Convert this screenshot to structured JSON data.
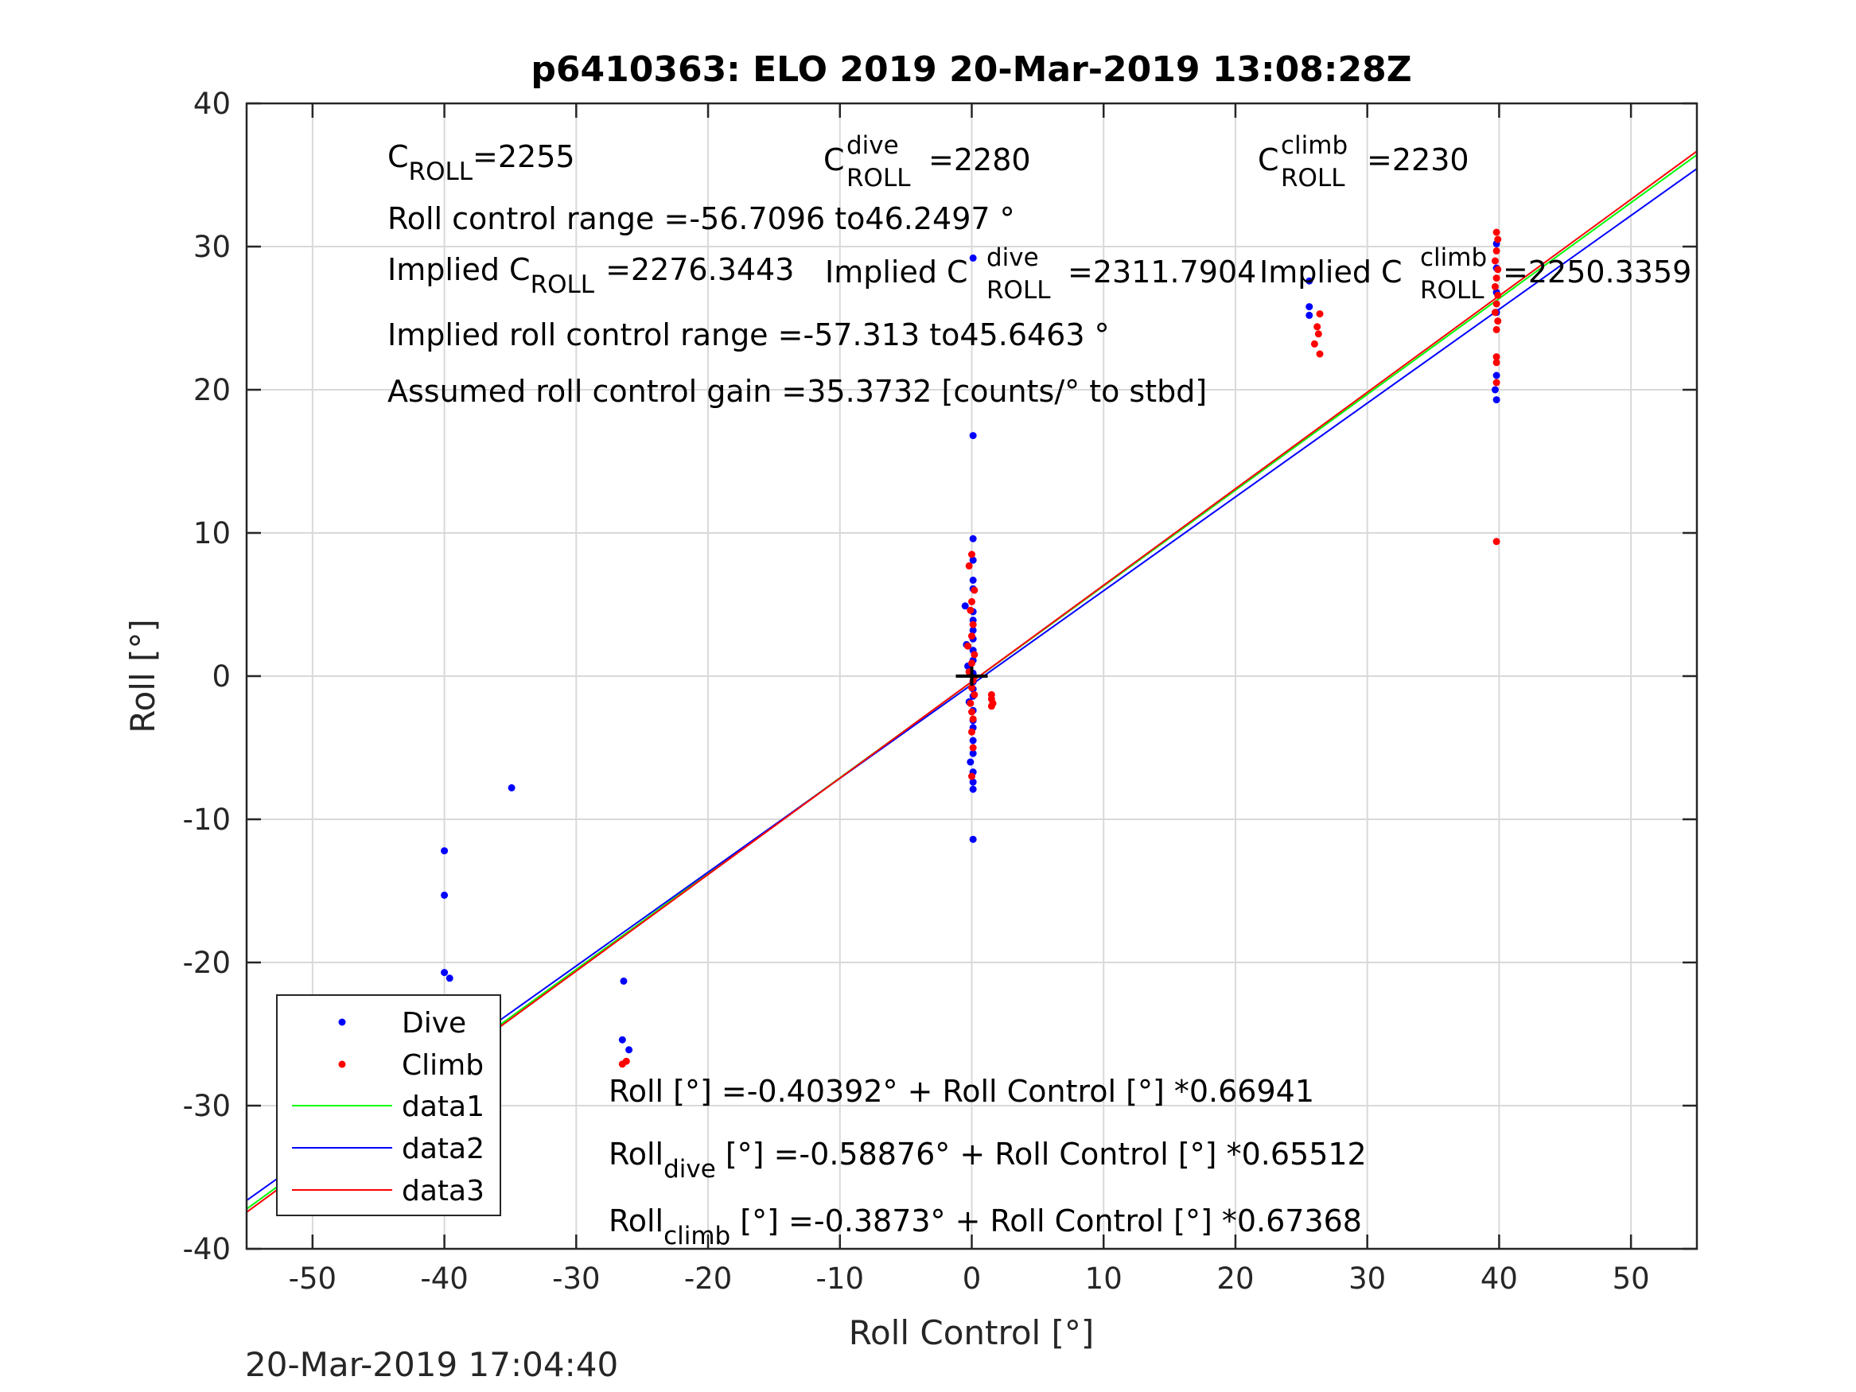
{
  "chart_data": {
    "type": "scatter",
    "title": "p6410363: ELO 2019 20-Mar-2019 13:08:28Z",
    "xlabel": "Roll Control [°]",
    "ylabel": "Roll [°]",
    "xlim": [
      -55,
      55
    ],
    "ylim": [
      -40,
      40
    ],
    "xticks": [
      -50,
      -40,
      -30,
      -20,
      -10,
      0,
      10,
      20,
      30,
      40,
      50
    ],
    "yticks": [
      -40,
      -30,
      -20,
      -10,
      0,
      10,
      20,
      30,
      40
    ],
    "grid": true,
    "legend_position": "bottom-left",
    "timestamp": "20-Mar-2019 17:04:40",
    "annotations": {
      "c_roll": {
        "main": "C",
        "sub": "ROLL",
        "tail": "=2255"
      },
      "c_roll_dive": {
        "main": "C",
        "sup": "dive",
        "sub": "ROLL",
        "tail": "=2280"
      },
      "c_roll_climb": {
        "main": "C",
        "sup": "climb",
        "sub": "ROLL",
        "tail": "=2230"
      },
      "range": "Roll control range =-56.7096 to46.2497 °",
      "implied_c_roll": {
        "main": "Implied C",
        "sub": "ROLL",
        "tail": "=2276.3443"
      },
      "implied_c_roll_dive": {
        "main": "Implied C",
        "sup": "dive",
        "sub": "ROLL",
        "tail": "=2311.7904"
      },
      "implied_c_roll_climb": {
        "main": "Implied C",
        "sup": "climb",
        "sub": "ROLL",
        "tail": "=2250.3359"
      },
      "implied_range": "Implied roll control range =-57.313 to45.6463 °",
      "gain": "Assumed roll control gain =35.3732 [counts/° to stbd]",
      "fit_all": {
        "main": "Roll [°] =-0.40392° + Roll Control [°] *0.66941"
      },
      "fit_dive": {
        "main": "Roll",
        "sub": "dive",
        "tail": " [°] =-0.58876° + Roll Control [°] *0.65512"
      },
      "fit_climb": {
        "main": "Roll",
        "sub": "climb",
        "tail": " [°] =-0.3873° + Roll Control [°] *0.67368"
      }
    },
    "series": [
      {
        "name": "Dive",
        "kind": "scatter",
        "color": "#0000ff",
        "points": [
          [
            -40,
            -12.2
          ],
          [
            -40,
            -15.3
          ],
          [
            -40,
            -20.7
          ],
          [
            -39.6,
            -21.1
          ],
          [
            -39.8,
            -23.2
          ],
          [
            -39.7,
            -24.5
          ],
          [
            -39.6,
            -25
          ],
          [
            -39.9,
            -25.5
          ],
          [
            -39.5,
            -26
          ],
          [
            -40.1,
            -26.3
          ],
          [
            -39.7,
            -26.8
          ],
          [
            -39.4,
            -27.1
          ],
          [
            -39.8,
            -27.4
          ],
          [
            -39.6,
            -27.9
          ],
          [
            -40,
            -28.3
          ],
          [
            -39.5,
            -28.7
          ],
          [
            -39.7,
            -29.1
          ],
          [
            -39.9,
            -29.5
          ],
          [
            -34.9,
            -7.8
          ],
          [
            -26.4,
            -21.3
          ],
          [
            -26.5,
            -25.4
          ],
          [
            -26,
            -26.1
          ],
          [
            0.1,
            29.2
          ],
          [
            0.1,
            16.8
          ],
          [
            0.1,
            9.6
          ],
          [
            0.1,
            8.1
          ],
          [
            0.1,
            6.7
          ],
          [
            0.1,
            6.1
          ],
          [
            -0.5,
            4.9
          ],
          [
            0.1,
            4.5
          ],
          [
            0.1,
            3.9
          ],
          [
            0.1,
            3.2
          ],
          [
            0.1,
            2.6
          ],
          [
            -0.4,
            2.2
          ],
          [
            0.1,
            1.8
          ],
          [
            0.1,
            1.1
          ],
          [
            -0.3,
            0.7
          ],
          [
            0.1,
            0.2
          ],
          [
            0.1,
            -0.4
          ],
          [
            0.1,
            -0.9
          ],
          [
            0.1,
            -1.4
          ],
          [
            -0.2,
            -1.8
          ],
          [
            0.1,
            -2.4
          ],
          [
            0.1,
            -3.1
          ],
          [
            0.1,
            -3.6
          ],
          [
            0.1,
            -4.5
          ],
          [
            0.1,
            -5.4
          ],
          [
            -0.1,
            -6.0
          ],
          [
            0.1,
            -6.7
          ],
          [
            0.1,
            -7.4
          ],
          [
            0.1,
            -7.9
          ],
          [
            0.1,
            -11.4
          ],
          [
            25.6,
            27.6
          ],
          [
            25.6,
            25.8
          ],
          [
            25.6,
            25.2
          ],
          [
            39.8,
            30.2
          ],
          [
            39.8,
            28.5
          ],
          [
            39.8,
            26.8
          ],
          [
            39.8,
            25.4
          ],
          [
            39.8,
            21.0
          ],
          [
            39.7,
            20.0
          ],
          [
            39.8,
            19.3
          ]
        ]
      },
      {
        "name": "Climb",
        "kind": "scatter",
        "color": "#ff0000",
        "points": [
          [
            -39.6,
            -23.0
          ],
          [
            -40.1,
            -23.3
          ],
          [
            -39.9,
            -26.6
          ],
          [
            -40,
            -27.8
          ],
          [
            -39.7,
            -28.5
          ],
          [
            -40.2,
            -29.1
          ],
          [
            -39.8,
            -29.4
          ],
          [
            -40,
            -30.1
          ],
          [
            -26.2,
            -26.9
          ],
          [
            -26.5,
            -27.1
          ],
          [
            0.0,
            8.5
          ],
          [
            -0.2,
            7.7
          ],
          [
            0.2,
            6.0
          ],
          [
            0.0,
            5.2
          ],
          [
            -0.1,
            4.6
          ],
          [
            0.1,
            3.6
          ],
          [
            0.0,
            2.8
          ],
          [
            -0.3,
            2.1
          ],
          [
            0.2,
            1.5
          ],
          [
            0.0,
            0.9
          ],
          [
            -0.2,
            0.3
          ],
          [
            0.1,
            -0.3
          ],
          [
            0.0,
            -0.8
          ],
          [
            0.2,
            -1.3
          ],
          [
            -0.1,
            -1.9
          ],
          [
            0.0,
            -2.5
          ],
          [
            0.1,
            -3.0
          ],
          [
            0.0,
            -3.9
          ],
          [
            0.1,
            -5.0
          ],
          [
            0.0,
            -7.0
          ],
          [
            1.5,
            -1.3
          ],
          [
            1.5,
            -1.6
          ],
          [
            1.6,
            -1.9
          ],
          [
            1.5,
            -2.1
          ],
          [
            26.4,
            25.3
          ],
          [
            26.2,
            24.4
          ],
          [
            26.3,
            23.9
          ],
          [
            26.0,
            23.2
          ],
          [
            26.4,
            22.5
          ],
          [
            39.8,
            31.0
          ],
          [
            39.9,
            30.5
          ],
          [
            39.8,
            29.7
          ],
          [
            39.7,
            29.0
          ],
          [
            39.9,
            28.4
          ],
          [
            39.8,
            27.8
          ],
          [
            39.7,
            27.2
          ],
          [
            39.9,
            26.6
          ],
          [
            39.8,
            26.0
          ],
          [
            39.7,
            25.4
          ],
          [
            39.9,
            24.8
          ],
          [
            39.8,
            24.2
          ],
          [
            39.8,
            22.3
          ],
          [
            39.8,
            21.9
          ],
          [
            39.8,
            20.5
          ],
          [
            39.8,
            9.4
          ]
        ]
      },
      {
        "name": "data1",
        "kind": "line",
        "color": "#00ff00",
        "intercept": -0.40392,
        "slope": 0.66941
      },
      {
        "name": "data2",
        "kind": "line",
        "color": "#0000ff",
        "intercept": -0.58876,
        "slope": 0.65512
      },
      {
        "name": "data3",
        "kind": "line",
        "color": "#ff0000",
        "intercept": -0.3873,
        "slope": 0.67368
      },
      {
        "name": "",
        "kind": "marker",
        "color": "#000000",
        "points": [
          [
            0,
            0
          ]
        ]
      }
    ]
  }
}
